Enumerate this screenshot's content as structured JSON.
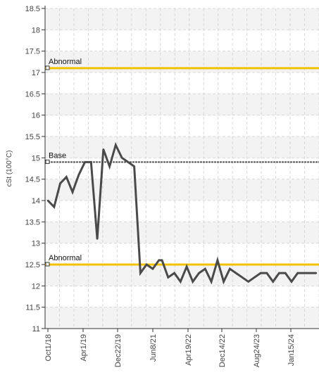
{
  "chart_data": {
    "type": "line",
    "title": "",
    "ylabel": "cSt (100°C)",
    "xlabel": "",
    "ylim": [
      11,
      18.5
    ],
    "yticks": [
      11,
      11.5,
      12,
      12.5,
      13,
      13.5,
      14,
      14.5,
      15,
      15.5,
      16,
      16.5,
      17,
      17.5,
      18,
      18.5
    ],
    "ytick_labels": [
      "11",
      "11.5",
      "12",
      "12.5",
      "13",
      "13.5",
      "14",
      "14.5",
      "15",
      "15.5",
      "16",
      "16.5",
      "17",
      "17.5",
      "18",
      "18.5"
    ],
    "x_tick_labels": [
      "Oct1/18",
      "Apr1/19",
      "Dec22/19",
      "Jun8/21",
      "Apr19/22",
      "Dec14/22",
      "Aug24/23",
      "Jan15/24"
    ],
    "grid": true,
    "reference_lines": [
      {
        "label": "Abnormal",
        "value": 17.1,
        "color": "#f2c200"
      },
      {
        "label": "Base",
        "value": 14.9,
        "color": "#555555"
      },
      {
        "label": "Abnormal",
        "value": 12.5,
        "color": "#f2c200"
      }
    ],
    "series": [
      {
        "color": "#4a4a4a",
        "x": [
          0,
          2,
          4,
          6,
          8,
          10,
          12,
          14,
          16,
          18,
          20,
          22,
          24,
          26,
          28,
          30,
          32,
          34,
          36,
          37,
          39,
          41,
          43,
          45,
          47,
          49,
          51,
          53,
          55,
          57,
          59,
          61,
          63,
          65,
          67,
          69,
          71,
          73,
          75,
          77,
          79,
          81,
          83,
          85,
          87
        ],
        "values": [
          14.0,
          13.85,
          14.4,
          14.55,
          14.2,
          14.6,
          14.9,
          14.9,
          13.1,
          15.2,
          14.8,
          15.3,
          15.0,
          14.9,
          14.8,
          12.3,
          12.5,
          12.4,
          12.6,
          12.6,
          12.2,
          12.3,
          12.1,
          12.45,
          12.1,
          12.3,
          12.4,
          12.1,
          12.6,
          12.1,
          12.4,
          12.3,
          12.2,
          12.1,
          12.2,
          12.3,
          12.3,
          12.1,
          12.3,
          12.3,
          12.1,
          12.3,
          12.3,
          12.3,
          12.3
        ]
      }
    ]
  }
}
